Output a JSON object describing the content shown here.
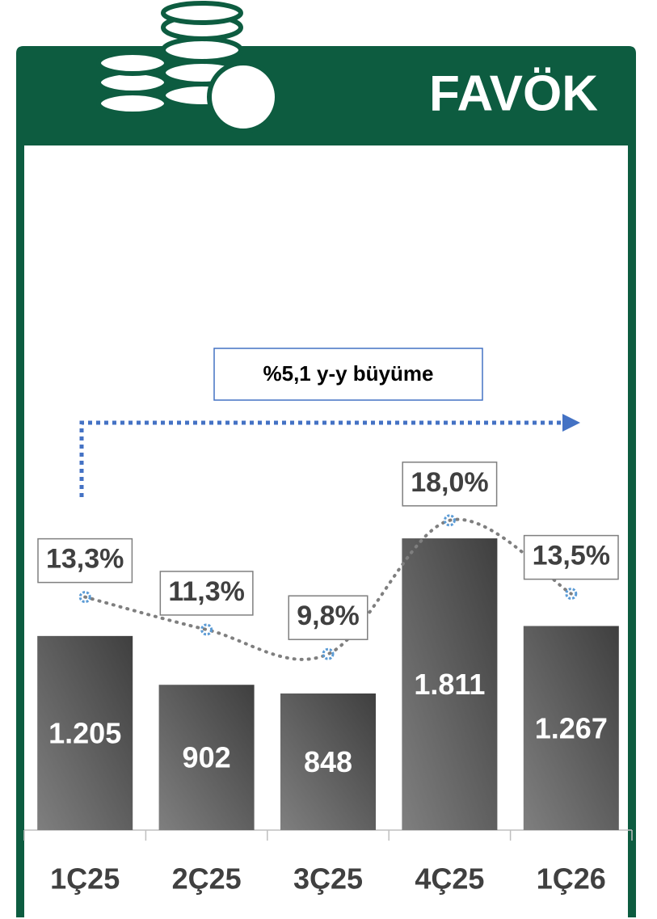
{
  "chart_data": {
    "type": "bar",
    "title": "FAVÖK",
    "annotation": "%5,1 y-y büyüme",
    "categories": [
      "1Ç25",
      "2Ç25",
      "3Ç25",
      "4Ç25",
      "1Ç26"
    ],
    "series": [
      {
        "type": "bar",
        "color": "#5a5a5a",
        "values": [
          1205,
          902,
          848,
          1811,
          1267
        ],
        "value_labels": [
          "1.205",
          "902",
          "848",
          "1.811",
          "1.267"
        ]
      },
      {
        "type": "line",
        "axis": "y2",
        "color": "#7f7f7f",
        "marker_color": "#5b9bd5",
        "values": [
          13.3,
          11.3,
          9.8,
          18.0,
          13.5
        ],
        "value_labels": [
          "13,3%",
          "11,3%",
          "9,8%",
          "18,0%",
          "13,5%"
        ]
      }
    ],
    "ylim": [
      0,
      4250
    ],
    "y2lim": [
      -1,
      41
    ]
  }
}
